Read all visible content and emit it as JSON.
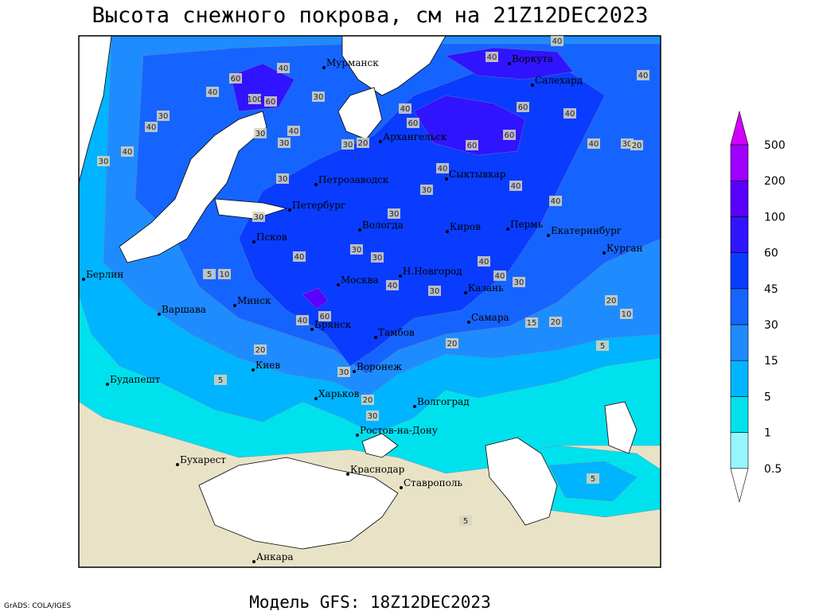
{
  "title": "Высота снежного покрова, см на 21Z12DEC2023",
  "model": "Модель GFS: 18Z12DEC2023",
  "credit": "GrADS: COLA/IGES",
  "cities": [
    "Мурманск",
    "Воркута",
    "Салехард",
    "Архангельск",
    "Петрозаводск",
    "Сыктывкар",
    "Петербург",
    "Вологда",
    "Киров",
    "Пермь",
    "Екатеринбург",
    "Курган",
    "Псков",
    "Берлин",
    "Н.Новгород",
    "Москва",
    "Казань",
    "Минск",
    "Варшава",
    "Самара",
    "Брянск",
    "Тамбов",
    "Киев",
    "Воронеж",
    "Будапешт",
    "Харьков",
    "Волгоград",
    "Ростов-на-Дону",
    "Бухарест",
    "Краснодар",
    "Ставрополь",
    "Анкара"
  ],
  "contour_labels": [
    40,
    40,
    60,
    40,
    30,
    40,
    100,
    60,
    30,
    40,
    40,
    30,
    30,
    40,
    30,
    30,
    20,
    40,
    60,
    60,
    60,
    60,
    40,
    40,
    40,
    30,
    20,
    40,
    30,
    40,
    40,
    30,
    30,
    30,
    30,
    30,
    40,
    40,
    40,
    30,
    5,
    10,
    40,
    30,
    20,
    10,
    15,
    20,
    40,
    60,
    20,
    5,
    20,
    30,
    20,
    30,
    5,
    5,
    5
  ],
  "legend": {
    "levels": [
      0.5,
      1,
      5,
      15,
      30,
      45,
      60,
      100,
      200,
      500
    ],
    "colors": [
      "#ffffff",
      "#96f5ff",
      "#00e1ee",
      "#00b4ff",
      "#1e8cff",
      "#1664ff",
      "#0a3cff",
      "#3014ff",
      "#5a00ff",
      "#a000ff",
      "#d200ff"
    ]
  }
}
